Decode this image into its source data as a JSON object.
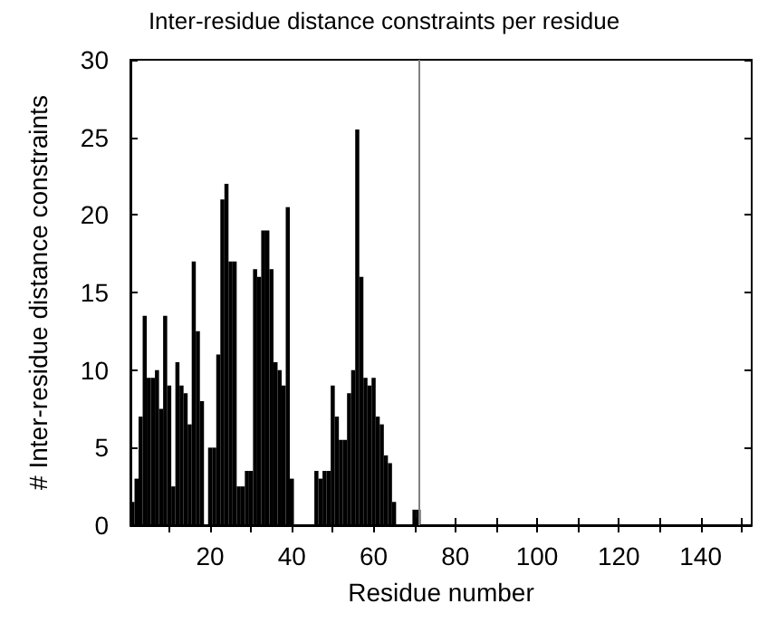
{
  "chart_data": {
    "type": "bar",
    "title": "Inter-residue distance constraints per residue",
    "xlabel": "Residue number",
    "ylabel": "# Inter-residue distance constraints",
    "x": [
      1,
      2,
      3,
      4,
      5,
      6,
      7,
      8,
      9,
      10,
      11,
      12,
      13,
      14,
      15,
      16,
      17,
      18,
      19,
      20,
      21,
      22,
      23,
      24,
      25,
      26,
      27,
      28,
      29,
      30,
      31,
      32,
      33,
      34,
      35,
      36,
      37,
      38,
      39,
      40,
      41,
      42,
      43,
      44,
      45,
      46,
      47,
      48,
      49,
      50,
      51,
      52,
      53,
      54,
      55,
      56,
      57,
      58,
      59,
      60,
      61,
      62,
      63,
      64,
      65,
      66,
      67,
      68,
      69,
      70,
      71
    ],
    "series": [
      {
        "color": "#000000",
        "values": [
          1.5,
          3,
          7,
          13.5,
          9.5,
          9.5,
          10,
          7.5,
          13.5,
          9,
          2.5,
          10.5,
          9,
          8.5,
          6.5,
          17,
          12.5,
          8,
          0,
          5,
          5,
          11,
          21,
          22,
          17,
          17,
          2.5,
          2.5,
          3.5,
          3.5,
          16.5,
          16,
          19,
          19,
          16.5,
          10.5,
          10,
          9,
          20.5,
          3,
          0,
          0,
          0,
          0,
          0,
          3.5,
          3,
          3.5,
          3.5,
          9,
          7,
          5.5,
          5.5,
          8.5,
          10,
          25.5,
          16,
          9.5,
          9,
          9.5,
          7,
          6.5,
          4.5,
          4,
          1.5,
          0,
          0,
          0,
          0,
          1,
          1
        ]
      }
    ],
    "xlim": [
      0.5,
      152.5
    ],
    "ylim": [
      0,
      30
    ],
    "xticks": [
      {
        "value": 10,
        "label": null
      },
      20,
      {
        "value": 30,
        "label": null
      },
      40,
      {
        "value": 50,
        "label": null
      },
      60,
      {
        "value": 70,
        "label": null
      },
      80,
      {
        "value": 90,
        "label": null
      },
      100,
      {
        "value": 110,
        "label": null
      },
      120,
      {
        "value": 130,
        "label": null
      },
      140,
      {
        "value": 150,
        "label": null
      }
    ],
    "yticks": [
      0,
      5,
      10,
      15,
      20,
      25,
      30
    ],
    "ref_lines": [
      {
        "axis": "x",
        "value": 71,
        "color": "#808080"
      }
    ],
    "grid": false
  }
}
